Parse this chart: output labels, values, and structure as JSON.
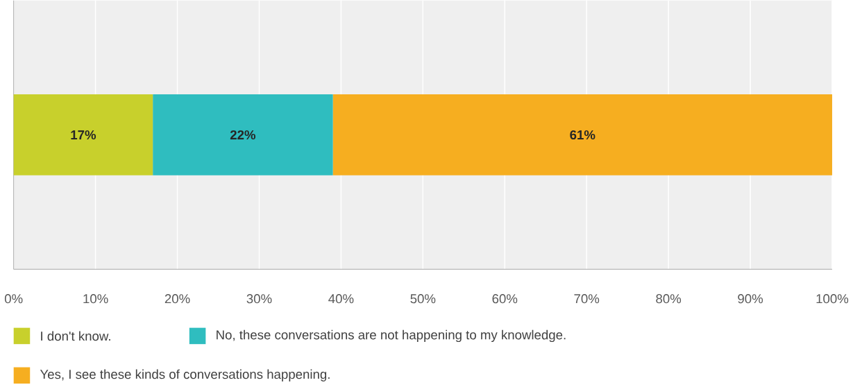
{
  "chart_data": {
    "type": "bar",
    "orientation": "horizontal",
    "stacked": true,
    "categories": [
      null
    ],
    "series": [
      {
        "name": "I don't know.",
        "color": "#c8d02c",
        "values": [
          17
        ],
        "value_labels": [
          "17%"
        ]
      },
      {
        "name": "No, these conversations are not happening to my knowledge.",
        "color": "#2fbdbf",
        "values": [
          22
        ],
        "value_labels": [
          "22%"
        ]
      },
      {
        "name": "Yes, I see these kinds of conversations happening.",
        "color": "#f6ae20",
        "values": [
          61
        ],
        "value_labels": [
          "61%"
        ]
      }
    ],
    "xlim": [
      0,
      100
    ],
    "xticks": [
      {
        "value": 0,
        "label": "0%"
      },
      {
        "value": 10,
        "label": "10%"
      },
      {
        "value": 20,
        "label": "20%"
      },
      {
        "value": 30,
        "label": "30%"
      },
      {
        "value": 40,
        "label": "40%"
      },
      {
        "value": 50,
        "label": "50%"
      },
      {
        "value": 60,
        "label": "60%"
      },
      {
        "value": 70,
        "label": "70%"
      },
      {
        "value": 80,
        "label": "80%"
      },
      {
        "value": 90,
        "label": "90%"
      },
      {
        "value": 100,
        "label": "100%"
      }
    ],
    "grid": "x",
    "legend": "bottom"
  }
}
